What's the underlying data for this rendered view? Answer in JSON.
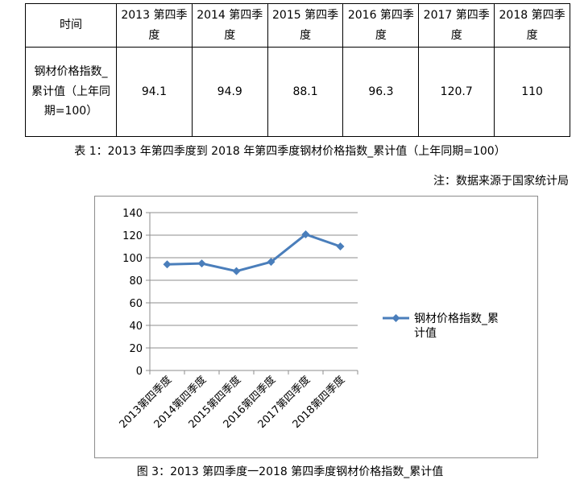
{
  "table": {
    "header": [
      "时间",
      "2013 第四季度",
      "2014 第四季度",
      "2015 第四季度",
      "2016 第四季度",
      "2017 第四季度",
      "2018 第四季度"
    ],
    "row_label": "钢材价格指数_累计值（上年同期=100）",
    "row_values": [
      "94.1",
      "94.9",
      "88.1",
      "96.3",
      "120.7",
      "110"
    ]
  },
  "table_caption": "表 1：2013 年第四季度到 2018 年第四季度钢材价格指数_累计值（上年同期=100）",
  "source_note": "注：数据来源于国家统计局",
  "chart_caption": "图 3：2013 第四季度一2018 第四季度钢材价格指数_累计值",
  "chart_data": {
    "type": "line",
    "categories": [
      "2013第四季度",
      "2014第四季度",
      "2015第四季度",
      "2016第四季度",
      "2017第四季度",
      "2018第四季度"
    ],
    "series": [
      {
        "name": "钢材价格指数_累计值",
        "values": [
          94.1,
          94.9,
          88.1,
          96.3,
          120.7,
          110
        ],
        "color": "#4a7ebb"
      }
    ],
    "yticks": [
      0,
      20,
      40,
      60,
      80,
      100,
      120,
      140
    ],
    "ylim": [
      0,
      140
    ],
    "grid": true,
    "legend_position": "right"
  }
}
